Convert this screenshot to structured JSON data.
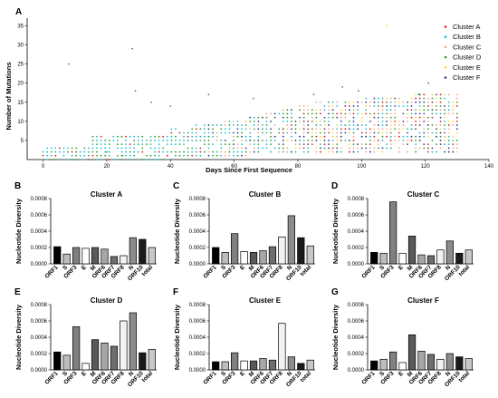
{
  "chart_data": [
    {
      "panel": "A",
      "type": "scatter",
      "xlabel": "Days Since First Sequence",
      "ylabel": "Number of Mutations",
      "xlim": [
        -5,
        140
      ],
      "ylim": [
        0,
        37
      ],
      "xticks": [
        0,
        20,
        40,
        60,
        80,
        100,
        120,
        140
      ],
      "yticks": [
        5,
        10,
        15,
        20,
        25,
        30,
        35
      ],
      "legend_position": "top-right",
      "series": [
        {
          "name": "Cluster A",
          "color": "#e41a1c"
        },
        {
          "name": "Cluster B",
          "color": "#17becf"
        },
        {
          "name": "Cluster C",
          "color": "#f4a582"
        },
        {
          "name": "Cluster D",
          "color": "#2ca02c"
        },
        {
          "name": "Cluster E",
          "color": "#ffd92f"
        },
        {
          "name": "Cluster F",
          "color": "#2b3a8c"
        }
      ]
    },
    {
      "panel": "B",
      "type": "bar",
      "title": "Cluster A",
      "ylabel": "Nucleotide Diversity",
      "categories": [
        "ORF1",
        "S",
        "ORF3",
        "E",
        "M",
        "ORF6",
        "ORF7",
        "ORF8",
        "N",
        "ORF10",
        "total"
      ],
      "values": [
        0.00021,
        0.00012,
        0.0002,
        0.00019,
        0.0002,
        0.00018,
        9e-05,
        0.0001,
        0.00032,
        0.0003,
        0.0002
      ],
      "ylim": [
        0,
        0.0008
      ],
      "yticks": [
        "0.0000",
        "0.0002",
        "0.0004",
        "0.0006",
        "0.0008"
      ]
    },
    {
      "panel": "C",
      "type": "bar",
      "title": "Cluster B",
      "ylabel": "Nucleotide Diversity",
      "categories": [
        "ORF1",
        "S",
        "ORF3",
        "E",
        "M",
        "ORF6",
        "ORF7",
        "ORF8",
        "N",
        "ORF10",
        "total"
      ],
      "values": [
        0.0002,
        0.00014,
        0.00037,
        0.00015,
        0.00014,
        0.00016,
        0.00021,
        0.00033,
        0.00059,
        0.00032,
        0.00022
      ],
      "ylim": [
        0,
        0.0008
      ],
      "yticks": [
        "0.0000",
        "0.0002",
        "0.0004",
        "0.0006",
        "0.0008"
      ]
    },
    {
      "panel": "D",
      "type": "bar",
      "title": "Cluster C",
      "ylabel": "Nucleotide Diversity",
      "categories": [
        "ORF1",
        "S",
        "ORF3",
        "E",
        "M",
        "ORF6",
        "ORF7",
        "ORF8",
        "N",
        "ORF10",
        "total"
      ],
      "values": [
        0.00014,
        0.00013,
        0.00076,
        0.00013,
        0.00034,
        0.00011,
        0.0001,
        0.00017,
        0.00028,
        0.00013,
        0.00017
      ],
      "ylim": [
        0,
        0.0008
      ],
      "yticks": [
        "0.0000",
        "0.0002",
        "0.0004",
        "0.0006",
        "0.0008"
      ]
    },
    {
      "panel": "E",
      "type": "bar",
      "title": "Cluster D",
      "ylabel": "Nucleotide Diversity",
      "categories": [
        "ORF1",
        "S",
        "ORF3",
        "E",
        "M",
        "ORF6",
        "ORF7",
        "ORF8",
        "N",
        "ORF10",
        "total"
      ],
      "values": [
        0.00022,
        0.00018,
        0.00053,
        8e-05,
        0.00037,
        0.00033,
        0.00029,
        0.0006,
        0.0007,
        0.00021,
        0.00025
      ],
      "ylim": [
        0,
        0.0008
      ],
      "yticks": [
        "0.0000",
        "0.0002",
        "0.0004",
        "0.0006",
        "0.0008"
      ]
    },
    {
      "panel": "F",
      "type": "bar",
      "title": "Cluster E",
      "ylabel": "Nucleotide Diversity",
      "categories": [
        "ORF1",
        "S",
        "ORF3",
        "E",
        "M",
        "ORF6",
        "ORF7",
        "ORF8",
        "N",
        "ORF10",
        "total"
      ],
      "values": [
        0.0001,
        0.0001,
        0.00021,
        0.00011,
        0.00011,
        0.00014,
        0.00012,
        0.00057,
        0.00016,
        8e-05,
        0.00012
      ],
      "ylim": [
        0,
        0.0008
      ],
      "yticks": [
        "0.0000",
        "0.0002",
        "0.0004",
        "0.0006",
        "0.0008"
      ]
    },
    {
      "panel": "G",
      "type": "bar",
      "title": "Cluster F",
      "ylabel": "Nucleotide Diversity",
      "categories": [
        "ORF1",
        "S",
        "ORF3",
        "E",
        "M",
        "ORF6",
        "ORF7",
        "ORF8",
        "N",
        "ORF10",
        "total"
      ],
      "values": [
        0.00011,
        0.00013,
        0.00022,
        9e-05,
        0.00043,
        0.00023,
        0.00019,
        0.00013,
        0.0002,
        0.00016,
        0.00014
      ],
      "ylim": [
        0,
        0.0008
      ],
      "yticks": [
        "0.0000",
        "0.0002",
        "0.0004",
        "0.0006",
        "0.0008"
      ]
    }
  ],
  "bar_colors": [
    "#000000",
    "#bdbdbd",
    "#808080",
    "#ffffff",
    "#595959",
    "#a6a6a6",
    "#6e6e6e",
    "#f2f2f2",
    "#8c8c8c",
    "#1a1a1a",
    "#c8c8c8"
  ]
}
